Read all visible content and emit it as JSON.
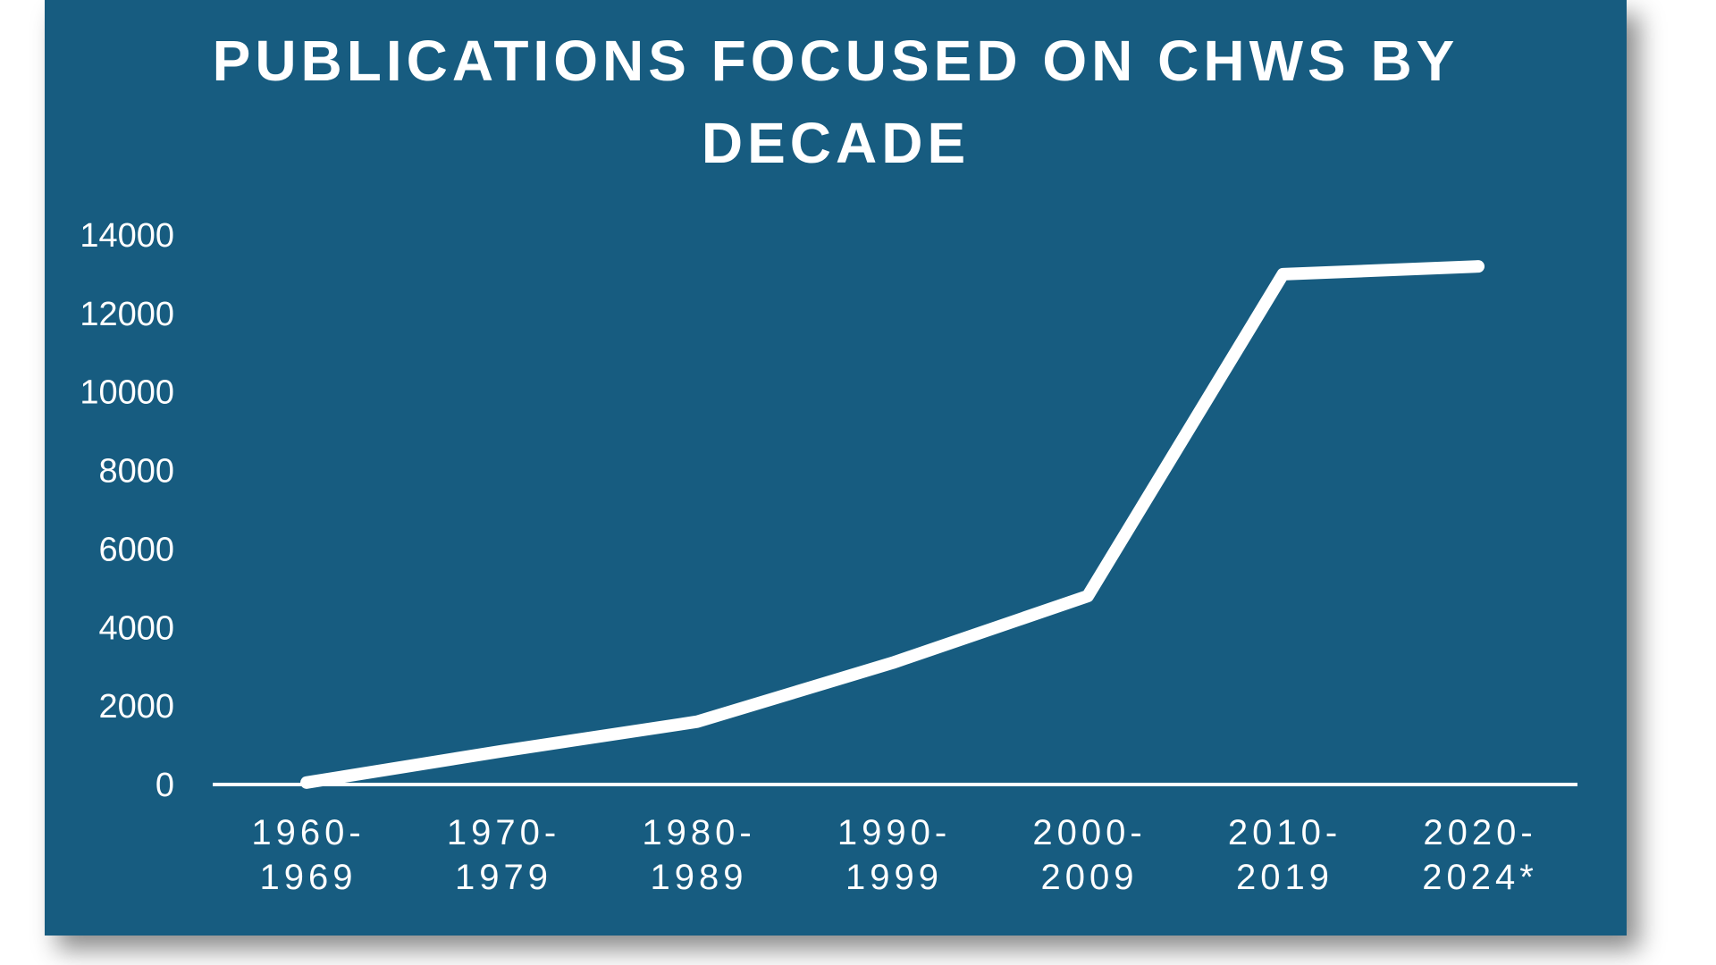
{
  "chart_data": {
    "type": "line",
    "title": "PUBLICATIONS FOCUSED ON CHWS BY DECADE",
    "title_line1": "PUBLICATIONS FOCUSED ON CHWS BY",
    "title_line2": "DECADE",
    "xlabel": "",
    "ylabel": "",
    "categories": [
      [
        "1960-",
        "1969"
      ],
      [
        "1970-",
        "1979"
      ],
      [
        "1980-",
        "1989"
      ],
      [
        "1990-",
        "1999"
      ],
      [
        "2000-",
        "2009"
      ],
      [
        "2010-",
        "2019"
      ],
      [
        "2020-",
        "2024*"
      ]
    ],
    "values": [
      50,
      850,
      1600,
      3100,
      4800,
      13000,
      13200
    ],
    "ylim": [
      0,
      14000
    ],
    "yticks": [
      "0",
      "2000",
      "4000",
      "6000",
      "8000",
      "10000",
      "12000",
      "14000"
    ],
    "grid": false,
    "legend": "none",
    "colors": {
      "background": "#175c80",
      "line": "#ffffff",
      "text": "#ffffff"
    }
  }
}
